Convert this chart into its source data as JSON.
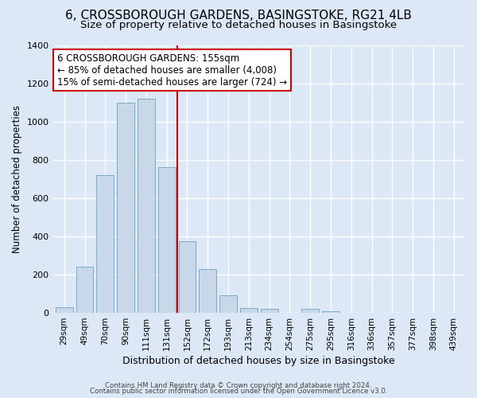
{
  "title": "6, CROSSBOROUGH GARDENS, BASINGSTOKE, RG21 4LB",
  "subtitle": "Size of property relative to detached houses in Basingstoke",
  "xlabel": "Distribution of detached houses by size in Basingstoke",
  "ylabel": "Number of detached properties",
  "bin_labels": [
    "29sqm",
    "49sqm",
    "70sqm",
    "90sqm",
    "111sqm",
    "131sqm",
    "152sqm",
    "172sqm",
    "193sqm",
    "213sqm",
    "234sqm",
    "254sqm",
    "275sqm",
    "295sqm",
    "316sqm",
    "336sqm",
    "357sqm",
    "377sqm",
    "398sqm",
    "439sqm"
  ],
  "bin_counts": [
    30,
    240,
    720,
    1100,
    1120,
    760,
    375,
    230,
    90,
    25,
    20,
    0,
    20,
    10,
    0,
    0,
    0,
    0,
    0,
    0
  ],
  "bar_color": "#c8d8e8",
  "bar_edge_color": "#7aaac8",
  "vline_x_index": 6,
  "vline_color": "#cc0000",
  "annotation_text": "6 CROSSBOROUGH GARDENS: 155sqm\n← 85% of detached houses are smaller (4,008)\n15% of semi-detached houses are larger (724) →",
  "annotation_box_color": "#ffffff",
  "annotation_box_edge_color": "#cc0000",
  "ylim": [
    0,
    1400
  ],
  "yticks": [
    0,
    200,
    400,
    600,
    800,
    1000,
    1200,
    1400
  ],
  "footer1": "Contains HM Land Registry data © Crown copyright and database right 2024.",
  "footer2": "Contains public sector information licensed under the Open Government Licence v3.0.",
  "background_color": "#dce8f5",
  "plot_bg_color": "#dce8f5",
  "grid_color": "#ffffff",
  "title_fontsize": 11,
  "subtitle_fontsize": 9.5,
  "xlabel_fontsize": 9,
  "ylabel_fontsize": 8.5,
  "annotation_fontsize": 8.5
}
